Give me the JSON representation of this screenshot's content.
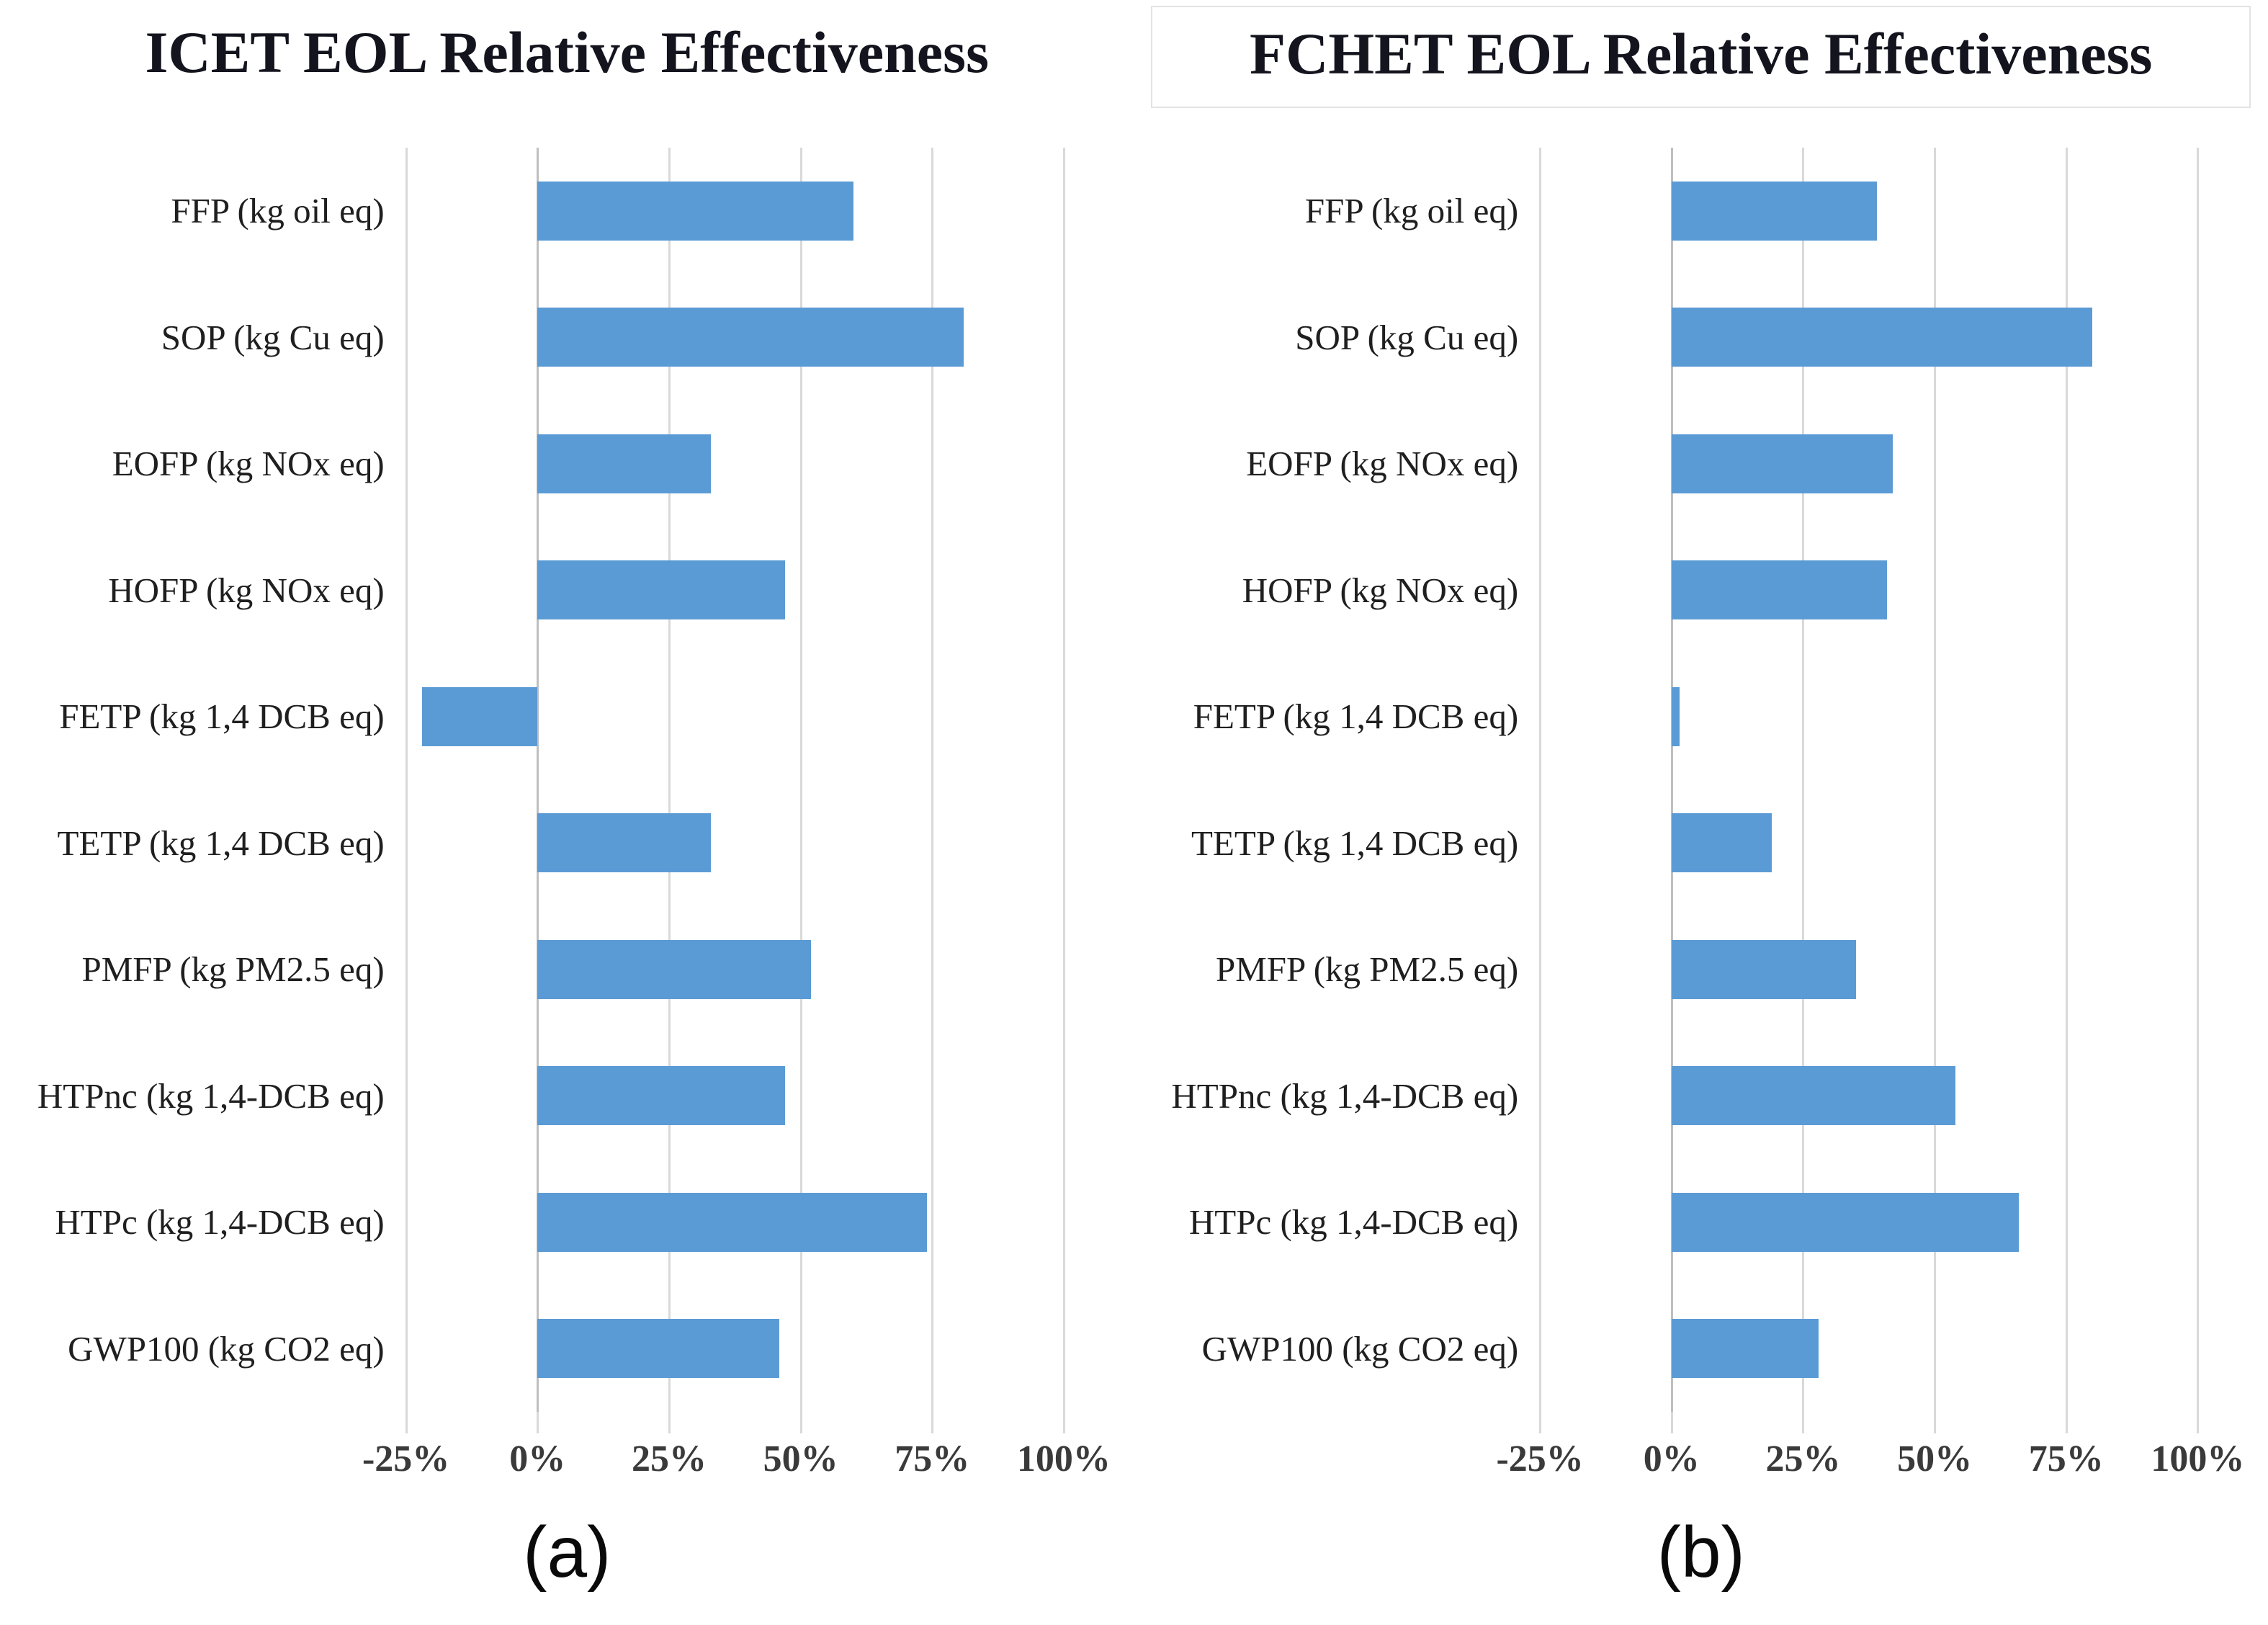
{
  "page": {
    "captions": [
      "(a)",
      "(b)"
    ]
  },
  "colors": {
    "bar": "#5b9bd5",
    "gridline": "#d9d9d9",
    "zeroline": "#bfbfbf"
  },
  "chart_data": [
    {
      "type": "bar",
      "orientation": "horizontal",
      "title": "ICET EOL Relative Effectiveness",
      "categories": [
        "FFP (kg oil eq)",
        "SOP (kg Cu eq)",
        "EOFP (kg NOx eq)",
        "HOFP (kg NOx eq)",
        "FETP (kg 1,4 DCB eq)",
        "TETP (kg 1,4 DCB eq)",
        "PMFP (kg PM2.5 eq)",
        "HTPnc (kg 1,4-DCB eq)",
        "HTPc (kg 1,4-DCB eq)",
        "GWP100 (kg CO2 eq)"
      ],
      "values": [
        60,
        81,
        33,
        47,
        -22,
        33,
        52,
        47,
        74,
        46
      ],
      "unit": "percent",
      "xlim": [
        -25,
        100
      ],
      "grid": true,
      "legend": "none",
      "ticks": [
        {
          "value": -25,
          "label": "-25%"
        },
        {
          "value": 0,
          "label": "0%"
        },
        {
          "value": 25,
          "label": "25%"
        },
        {
          "value": 50,
          "label": "50%"
        },
        {
          "value": 75,
          "label": "75%"
        },
        {
          "value": 100,
          "label": "100%"
        }
      ]
    },
    {
      "type": "bar",
      "orientation": "horizontal",
      "title": "FCHET EOL Relative Effectiveness",
      "categories": [
        "FFP (kg oil eq)",
        "SOP (kg Cu eq)",
        "EOFP (kg NOx eq)",
        "HOFP (kg NOx eq)",
        "FETP (kg 1,4 DCB eq)",
        "TETP (kg 1,4 DCB eq)",
        "PMFP (kg PM2.5 eq)",
        "HTPnc (kg 1,4-DCB eq)",
        "HTPc (kg 1,4-DCB eq)",
        "GWP100 (kg CO2 eq)"
      ],
      "values": [
        39,
        80,
        42,
        41,
        1.5,
        19,
        35,
        54,
        66,
        28
      ],
      "unit": "percent",
      "xlim": [
        -25,
        100
      ],
      "grid": true,
      "legend": "none",
      "ticks": [
        {
          "value": -25,
          "label": "-25%"
        },
        {
          "value": 0,
          "label": "0%"
        },
        {
          "value": 25,
          "label": "25%"
        },
        {
          "value": 50,
          "label": "50%"
        },
        {
          "value": 75,
          "label": "75%"
        },
        {
          "value": 100,
          "label": "100%"
        }
      ]
    }
  ]
}
